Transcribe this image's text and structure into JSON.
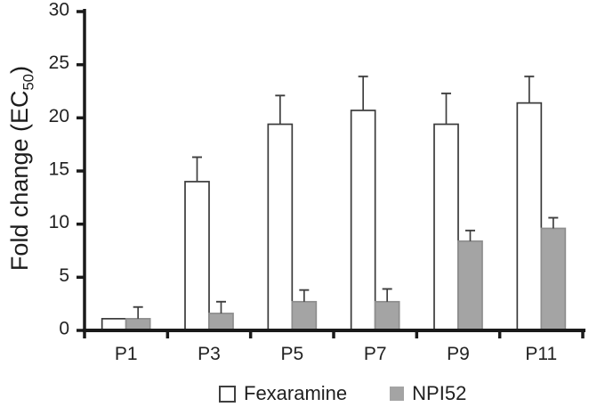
{
  "chart_data": {
    "type": "bar",
    "title": "",
    "categories": [
      "P1",
      "P3",
      "P5",
      "P7",
      "P9",
      "P11"
    ],
    "series": [
      {
        "name": "Fexaramine",
        "fill": "#ffffff",
        "stroke": "#3a3a3a",
        "values": [
          1.1,
          14.0,
          19.4,
          20.7,
          19.4,
          21.4
        ],
        "errors": [
          0,
          2.3,
          2.7,
          3.2,
          2.9,
          2.5
        ]
      },
      {
        "name": "NPI52",
        "fill": "#a4a4a4",
        "stroke": "#8e8e8e",
        "values": [
          1.1,
          1.6,
          2.7,
          2.7,
          8.4,
          9.6
        ],
        "errors": [
          1.1,
          1.1,
          1.1,
          1.2,
          1.0,
          1.0
        ]
      }
    ],
    "xlabel": "",
    "ylabel": "Fold change (EC50)",
    "ylabel_parts": {
      "main": "Fold change (EC",
      "sub": "50",
      "close": ")"
    },
    "ylim": [
      0,
      30
    ],
    "yticks": [
      0,
      5,
      10,
      15,
      20,
      25,
      30
    ],
    "grid": false,
    "legend_position": "bottom",
    "colors": {
      "axis": "#1a1a1a",
      "text": "#222222",
      "error_bar": "#3f3f3f",
      "background": "#ffffff"
    }
  }
}
